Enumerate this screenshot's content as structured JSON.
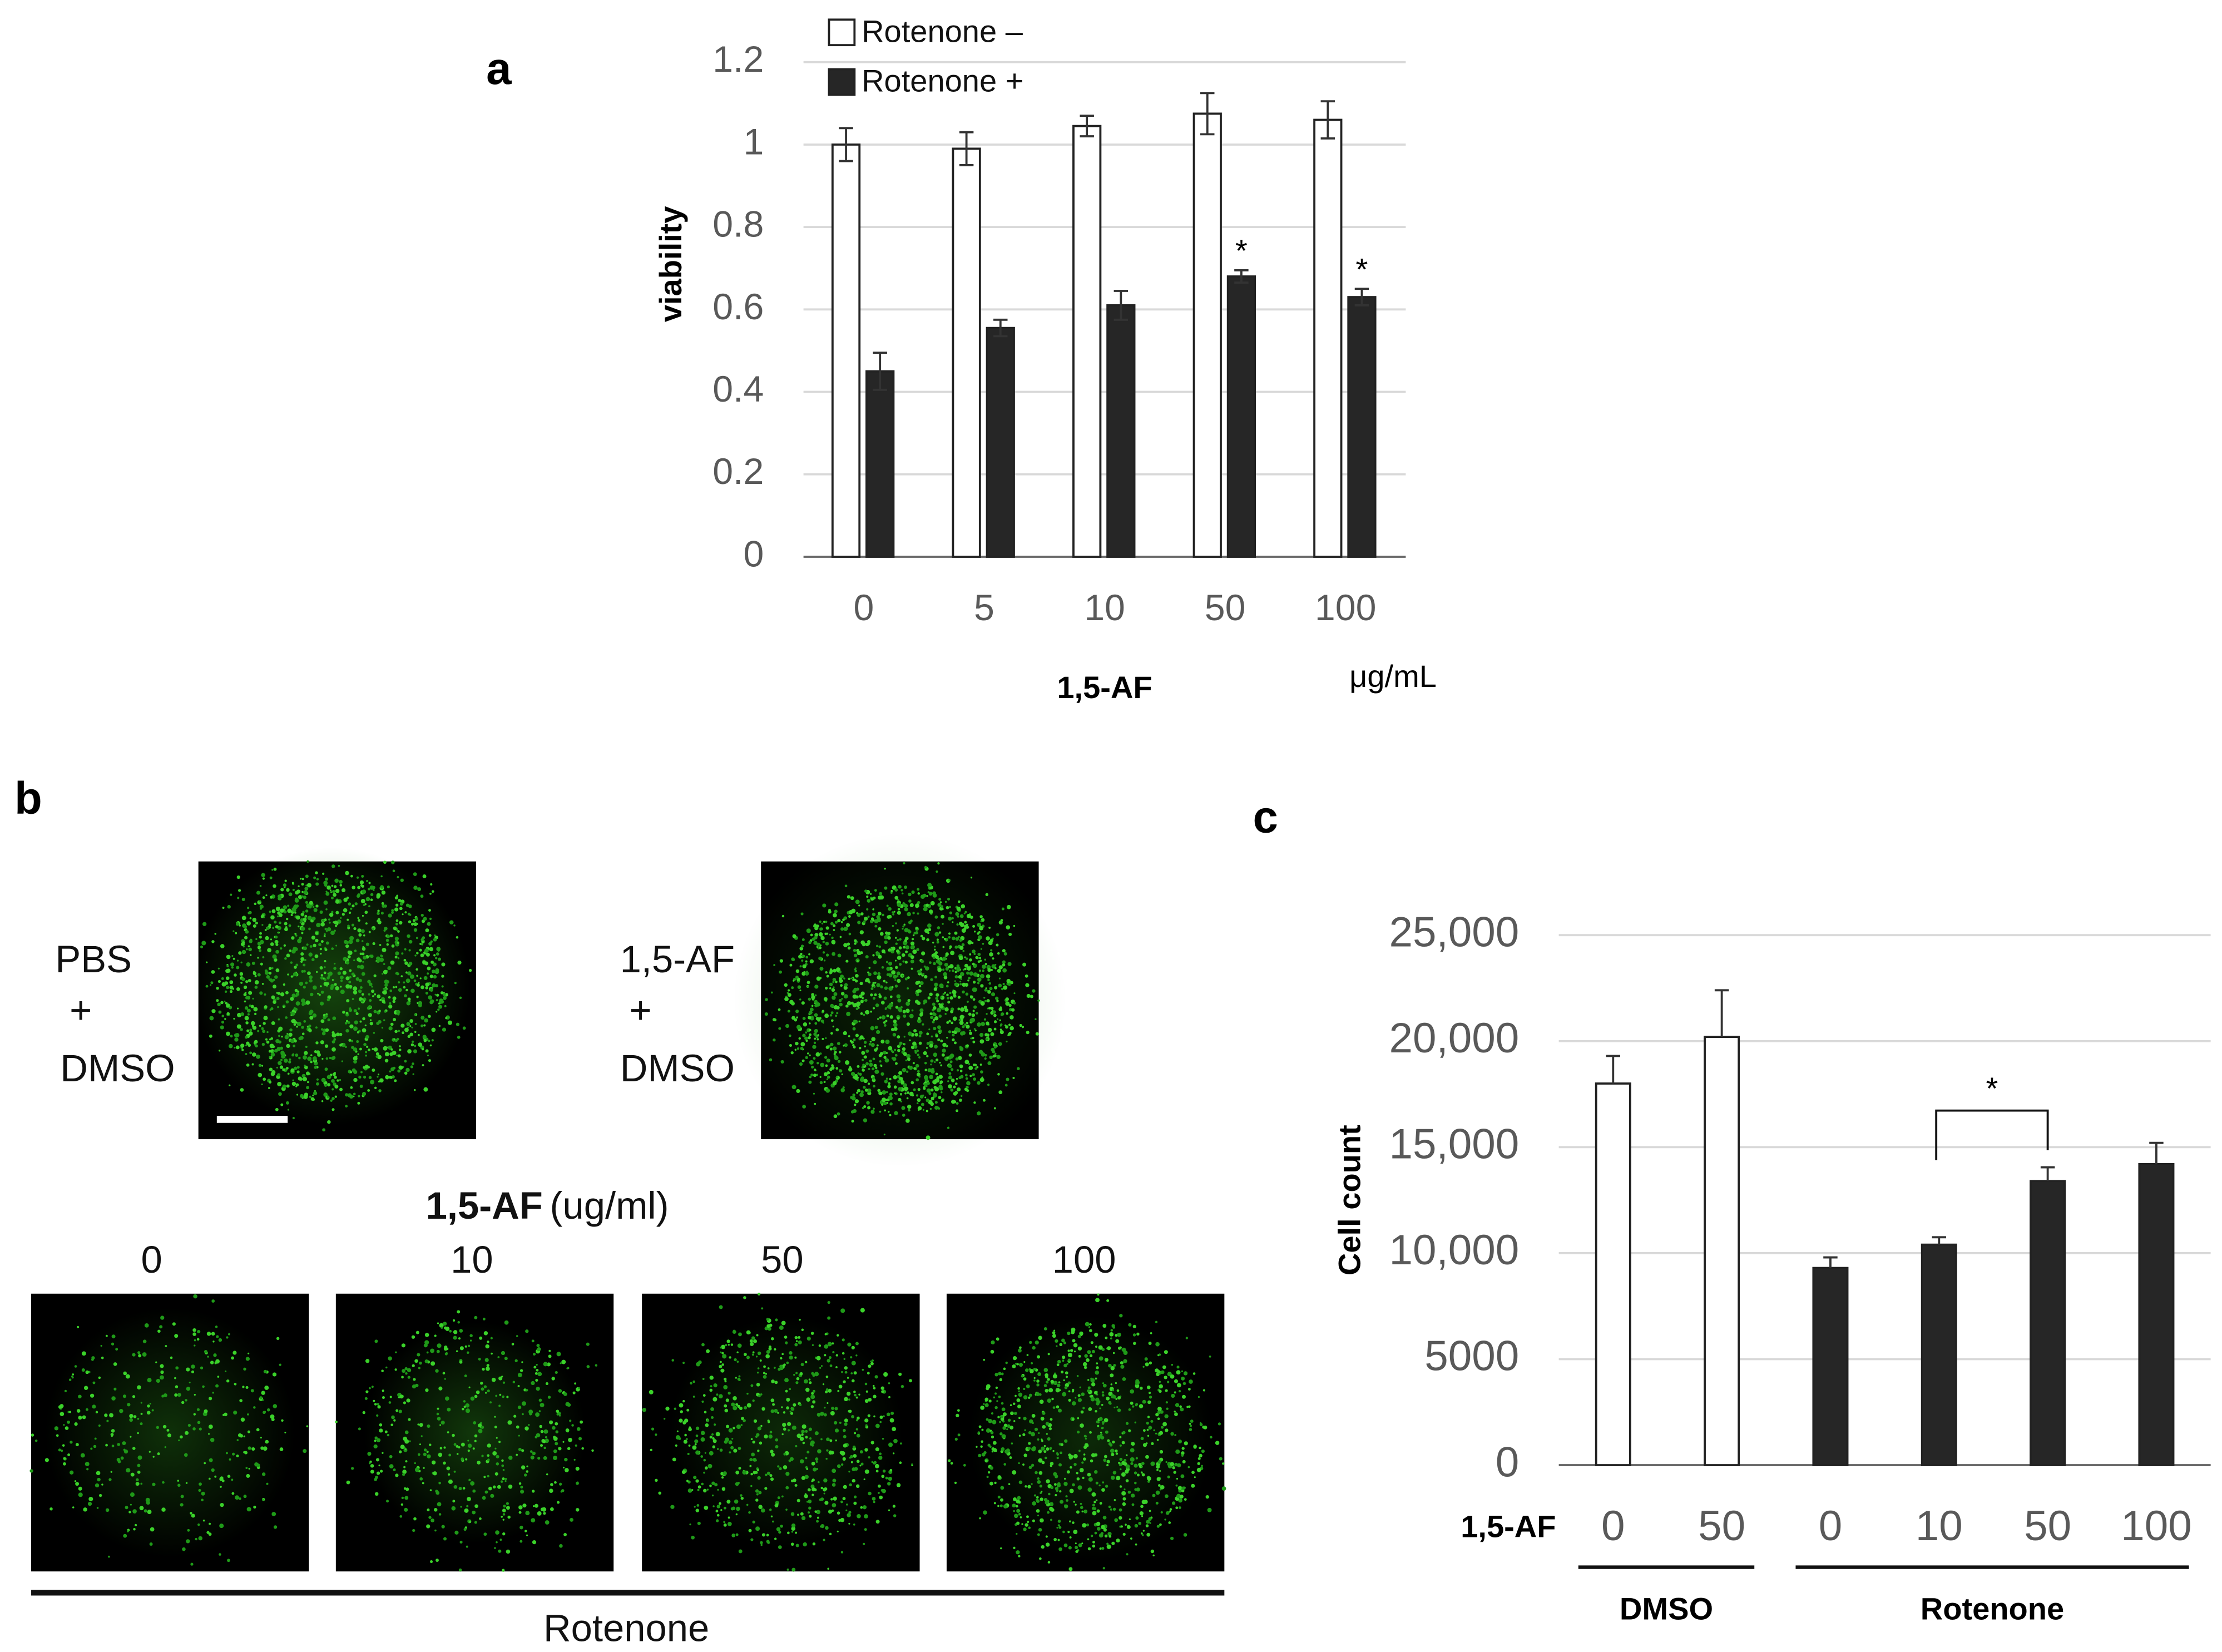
{
  "panel_labels": [
    "a",
    "b",
    "c"
  ],
  "chart_data": [
    {
      "type": "bar",
      "ylabel": "viability",
      "xlabel": "1,5-AF",
      "unit": "μg/mL",
      "categories": [
        "0",
        "5",
        "10",
        "50",
        "100"
      ],
      "series": [
        {
          "name": "Rotenone –",
          "color": "#ffffff",
          "values": [
            1.0,
            0.99,
            1.045,
            1.075,
            1.06
          ],
          "errors": [
            0.04,
            0.04,
            0.025,
            0.05,
            0.045
          ]
        },
        {
          "name": "Rotenone +",
          "color": "#262626",
          "values": [
            0.45,
            0.555,
            0.61,
            0.68,
            0.63
          ],
          "errors": [
            0.045,
            0.02,
            0.035,
            0.015,
            0.02
          ],
          "significance": [
            null,
            null,
            null,
            "*",
            "*"
          ]
        }
      ],
      "ylim": [
        0,
        1.2
      ],
      "yticks": [
        0,
        0.2,
        0.4,
        0.6,
        0.8,
        1,
        1.2
      ],
      "grid": true,
      "legend": "top-left",
      "error_bars": "both"
    },
    {
      "type": "bar",
      "ylabel": "Cell count",
      "xlabel": "1,5-AF",
      "categories": [
        "0",
        "50",
        "0",
        "10",
        "50",
        "100"
      ],
      "values": [
        18000,
        20200,
        9300,
        10400,
        13400,
        14200
      ],
      "errors": [
        1300,
        2200,
        500,
        350,
        650,
        1000
      ],
      "colors": [
        "#ffffff",
        "#ffffff",
        "#262626",
        "#262626",
        "#262626",
        "#262626"
      ],
      "groups": [
        {
          "label": "DMSO",
          "count": 2
        },
        {
          "label": "Rotenone",
          "count": 4
        }
      ],
      "comparisons": [
        {
          "categories": [
            3,
            4
          ],
          "label": "*"
        }
      ],
      "ylim": [
        0,
        25000
      ],
      "yticks": [
        0,
        5000,
        {
          "value": 10000,
          "label": "10,000"
        },
        {
          "value": 15000,
          "label": "15,000"
        },
        {
          "value": 20000,
          "label": "20,000"
        },
        {
          "value": 25000,
          "label": "25,000"
        }
      ],
      "grid": true,
      "error_bars": "upper"
    }
  ],
  "images": {
    "top_labels": [
      [
        "PBS",
        "+",
        "DMSO"
      ],
      [
        "1,5-AF",
        "+",
        "DMSO"
      ]
    ],
    "bottom_title": "1,5-AF",
    "bottom_unit": "(ug/ml)",
    "bottom_labels": [
      "0",
      "10",
      "50",
      "100"
    ],
    "group_label": "Rotenone"
  }
}
